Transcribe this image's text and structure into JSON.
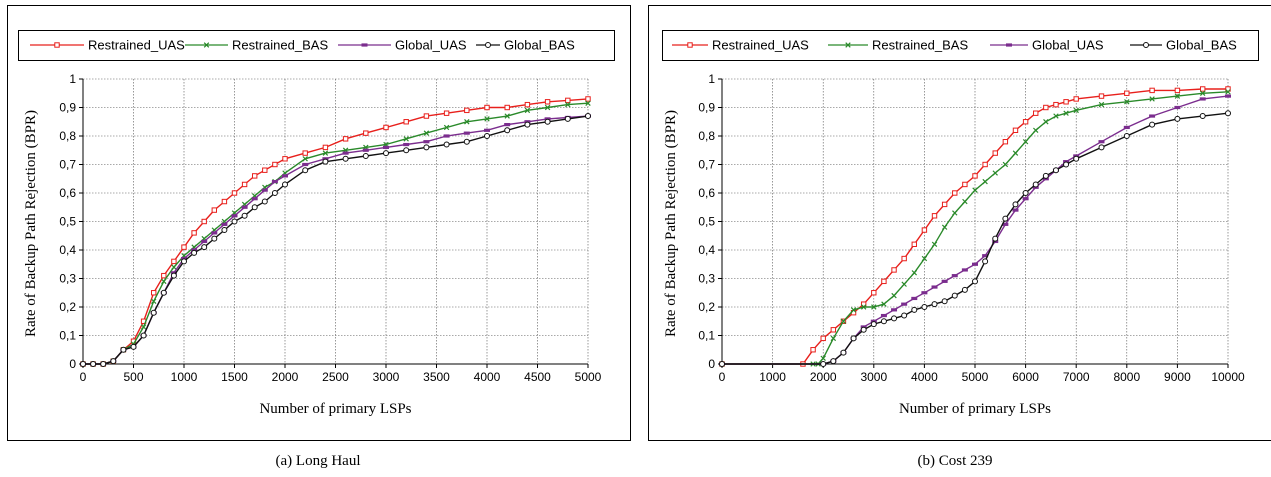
{
  "chart_data": [
    {
      "type": "line",
      "ylabel": "Rate of Backup Path Rejection (BPR)",
      "xlabel": "Number of primary LSPs",
      "caption": "(a) Long Haul",
      "xlim": [
        0,
        5000
      ],
      "ylim": [
        0,
        1
      ],
      "xticks": [
        0,
        500,
        1000,
        1500,
        2000,
        2500,
        3000,
        3500,
        4000,
        4500,
        5000
      ],
      "yticks": [
        0,
        0.1,
        0.2,
        0.3,
        0.4,
        0.5,
        0.6,
        0.7,
        0.8,
        0.9,
        1
      ],
      "ytick_labels": [
        "0",
        "0,1",
        "0,2",
        "0,3",
        "0,4",
        "0,5",
        "0,6",
        "0,7",
        "0,8",
        "0,9",
        "1"
      ],
      "grid": true,
      "legend_position": "top",
      "series": [
        {
          "name": "Restrained_UAS",
          "color": "#e8201c",
          "marker": "square",
          "x": [
            0,
            100,
            200,
            300,
            400,
            500,
            600,
            700,
            800,
            900,
            1000,
            1100,
            1200,
            1300,
            1400,
            1500,
            1600,
            1700,
            1800,
            1900,
            2000,
            2200,
            2400,
            2600,
            2800,
            3000,
            3200,
            3400,
            3600,
            3800,
            4000,
            4200,
            4400,
            4600,
            4800,
            5000
          ],
          "y": [
            0,
            0,
            0,
            0.01,
            0.05,
            0.08,
            0.15,
            0.25,
            0.31,
            0.36,
            0.41,
            0.46,
            0.5,
            0.54,
            0.57,
            0.6,
            0.63,
            0.66,
            0.68,
            0.7,
            0.72,
            0.74,
            0.76,
            0.79,
            0.81,
            0.83,
            0.85,
            0.87,
            0.88,
            0.89,
            0.9,
            0.9,
            0.91,
            0.92,
            0.925,
            0.93
          ]
        },
        {
          "name": "Restrained_BAS",
          "color": "#2a8a2a",
          "marker": "x",
          "x": [
            0,
            100,
            200,
            300,
            400,
            500,
            600,
            700,
            800,
            900,
            1000,
            1100,
            1200,
            1300,
            1400,
            1500,
            1600,
            1700,
            1800,
            1900,
            2000,
            2200,
            2400,
            2600,
            2800,
            3000,
            3200,
            3400,
            3600,
            3800,
            4000,
            4200,
            4400,
            4600,
            4800,
            5000
          ],
          "y": [
            0,
            0,
            0,
            0.01,
            0.05,
            0.07,
            0.13,
            0.22,
            0.29,
            0.34,
            0.38,
            0.41,
            0.44,
            0.47,
            0.5,
            0.53,
            0.56,
            0.59,
            0.62,
            0.64,
            0.67,
            0.72,
            0.74,
            0.75,
            0.76,
            0.77,
            0.79,
            0.81,
            0.83,
            0.85,
            0.86,
            0.87,
            0.89,
            0.9,
            0.91,
            0.915
          ]
        },
        {
          "name": "Global_UAS",
          "color": "#7b2d8e",
          "marker": "dash",
          "x": [
            0,
            100,
            200,
            300,
            400,
            500,
            600,
            700,
            800,
            900,
            1000,
            1100,
            1200,
            1300,
            1400,
            1500,
            1600,
            1700,
            1800,
            1900,
            2000,
            2200,
            2400,
            2600,
            2800,
            3000,
            3200,
            3400,
            3600,
            3800,
            4000,
            4200,
            4400,
            4600,
            4800,
            5000
          ],
          "y": [
            0,
            0,
            0,
            0.01,
            0.05,
            0.06,
            0.1,
            0.18,
            0.25,
            0.32,
            0.37,
            0.4,
            0.43,
            0.46,
            0.49,
            0.52,
            0.55,
            0.58,
            0.61,
            0.64,
            0.66,
            0.7,
            0.72,
            0.74,
            0.75,
            0.76,
            0.77,
            0.78,
            0.8,
            0.81,
            0.82,
            0.84,
            0.85,
            0.86,
            0.865,
            0.87
          ]
        },
        {
          "name": "Global_BAS",
          "color": "#111111",
          "marker": "circle",
          "x": [
            0,
            100,
            200,
            300,
            400,
            500,
            600,
            700,
            800,
            900,
            1000,
            1100,
            1200,
            1300,
            1400,
            1500,
            1600,
            1700,
            1800,
            1900,
            2000,
            2200,
            2400,
            2600,
            2800,
            3000,
            3200,
            3400,
            3600,
            3800,
            4000,
            4200,
            4400,
            4600,
            4800,
            5000
          ],
          "y": [
            0,
            0,
            0,
            0.01,
            0.05,
            0.06,
            0.1,
            0.18,
            0.25,
            0.31,
            0.36,
            0.39,
            0.41,
            0.44,
            0.47,
            0.5,
            0.52,
            0.55,
            0.57,
            0.6,
            0.63,
            0.68,
            0.71,
            0.72,
            0.73,
            0.74,
            0.75,
            0.76,
            0.77,
            0.78,
            0.8,
            0.82,
            0.84,
            0.85,
            0.86,
            0.87
          ]
        }
      ]
    },
    {
      "type": "line",
      "ylabel": "Rate of Backup Path Rejection (BPR)",
      "xlabel": "Number of primary LSPs",
      "caption": "(b) Cost 239",
      "xlim": [
        0,
        10000
      ],
      "ylim": [
        0,
        1
      ],
      "xticks": [
        0,
        1000,
        2000,
        3000,
        4000,
        5000,
        6000,
        7000,
        8000,
        9000,
        10000
      ],
      "yticks": [
        0,
        0.1,
        0.2,
        0.3,
        0.4,
        0.5,
        0.6,
        0.7,
        0.8,
        0.9,
        1
      ],
      "ytick_labels": [
        "0",
        "0,1",
        "0,2",
        "0,3",
        "0,4",
        "0,5",
        "0,6",
        "0,7",
        "0,8",
        "0,9",
        "1"
      ],
      "grid": true,
      "legend_position": "top",
      "series": [
        {
          "name": "Restrained_UAS",
          "color": "#e8201c",
          "marker": "square",
          "x": [
            0,
            1600,
            1800,
            2000,
            2200,
            2400,
            2600,
            2800,
            3000,
            3200,
            3400,
            3600,
            3800,
            4000,
            4200,
            4400,
            4600,
            4800,
            5000,
            5200,
            5400,
            5600,
            5800,
            6000,
            6200,
            6400,
            6600,
            6800,
            7000,
            7500,
            8000,
            8500,
            9000,
            9500,
            10000
          ],
          "y": [
            0,
            0,
            0.05,
            0.09,
            0.12,
            0.15,
            0.18,
            0.21,
            0.25,
            0.29,
            0.33,
            0.37,
            0.42,
            0.47,
            0.52,
            0.56,
            0.6,
            0.63,
            0.66,
            0.7,
            0.74,
            0.78,
            0.82,
            0.85,
            0.88,
            0.9,
            0.91,
            0.92,
            0.93,
            0.94,
            0.95,
            0.96,
            0.96,
            0.965,
            0.965
          ]
        },
        {
          "name": "Restrained_BAS",
          "color": "#2a8a2a",
          "marker": "x",
          "x": [
            0,
            1800,
            1900,
            2000,
            2200,
            2400,
            2600,
            2800,
            3000,
            3200,
            3400,
            3600,
            3800,
            4000,
            4200,
            4400,
            4600,
            4800,
            5000,
            5200,
            5400,
            5600,
            5800,
            6000,
            6200,
            6400,
            6600,
            6800,
            7000,
            7500,
            8000,
            8500,
            9000,
            9500,
            10000
          ],
          "y": [
            0,
            0,
            0,
            0.02,
            0.09,
            0.15,
            0.19,
            0.2,
            0.2,
            0.21,
            0.24,
            0.28,
            0.32,
            0.37,
            0.42,
            0.48,
            0.53,
            0.57,
            0.61,
            0.64,
            0.67,
            0.7,
            0.74,
            0.78,
            0.82,
            0.85,
            0.87,
            0.88,
            0.89,
            0.91,
            0.92,
            0.93,
            0.94,
            0.95,
            0.955
          ]
        },
        {
          "name": "Global_UAS",
          "color": "#7b2d8e",
          "marker": "dash",
          "x": [
            0,
            2000,
            2200,
            2400,
            2600,
            2800,
            3000,
            3200,
            3400,
            3600,
            3800,
            4000,
            4200,
            4400,
            4600,
            4800,
            5000,
            5200,
            5400,
            5600,
            5800,
            6000,
            6200,
            6400,
            6600,
            6800,
            7000,
            7500,
            8000,
            8500,
            9000,
            9500,
            10000
          ],
          "y": [
            0,
            0,
            0.01,
            0.04,
            0.09,
            0.13,
            0.15,
            0.17,
            0.19,
            0.21,
            0.23,
            0.25,
            0.27,
            0.29,
            0.31,
            0.33,
            0.35,
            0.38,
            0.43,
            0.49,
            0.54,
            0.58,
            0.62,
            0.65,
            0.68,
            0.71,
            0.73,
            0.78,
            0.83,
            0.87,
            0.9,
            0.93,
            0.94
          ]
        },
        {
          "name": "Global_BAS",
          "color": "#111111",
          "marker": "circle",
          "x": [
            0,
            2000,
            2200,
            2400,
            2600,
            2800,
            3000,
            3200,
            3400,
            3600,
            3800,
            4000,
            4200,
            4400,
            4600,
            4800,
            5000,
            5200,
            5400,
            5600,
            5800,
            6000,
            6200,
            6400,
            6600,
            6800,
            7000,
            7500,
            8000,
            8500,
            9000,
            9500,
            10000
          ],
          "y": [
            0,
            0,
            0.01,
            0.04,
            0.09,
            0.12,
            0.14,
            0.15,
            0.16,
            0.17,
            0.19,
            0.2,
            0.21,
            0.22,
            0.24,
            0.26,
            0.29,
            0.36,
            0.44,
            0.51,
            0.56,
            0.6,
            0.63,
            0.66,
            0.68,
            0.7,
            0.72,
            0.76,
            0.8,
            0.84,
            0.86,
            0.87,
            0.88
          ]
        }
      ]
    }
  ]
}
